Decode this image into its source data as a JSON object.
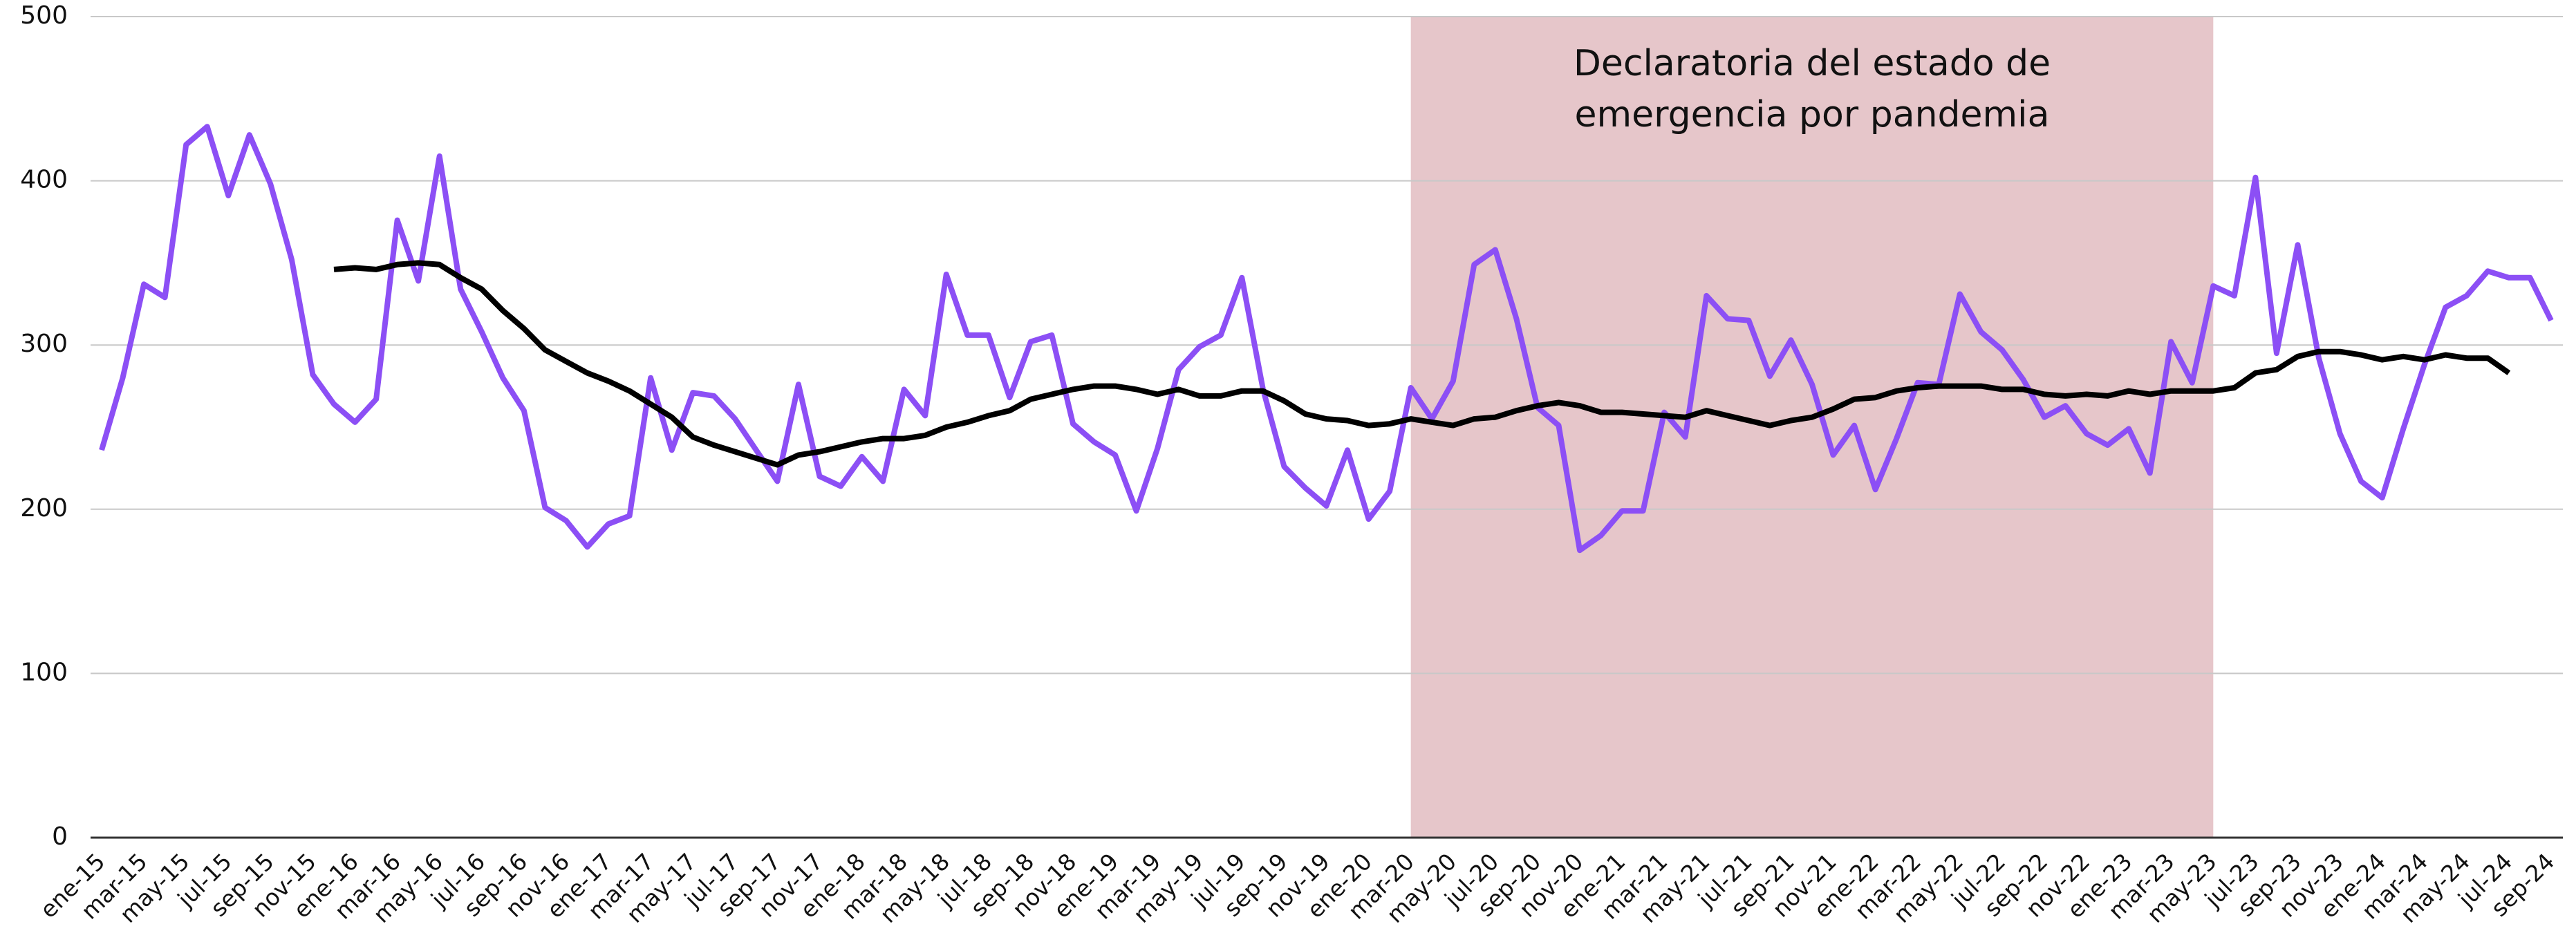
{
  "chart_data": {
    "type": "line",
    "categories": [
      "ene-15",
      null,
      "mar-15",
      null,
      "may-15",
      null,
      "jul-15",
      null,
      "sep-15",
      null,
      "nov-15",
      null,
      "ene-16",
      null,
      "mar-16",
      null,
      "may-16",
      null,
      "jul-16",
      null,
      "sep-16",
      null,
      "nov-16",
      null,
      "ene-17",
      null,
      "mar-17",
      null,
      "may-17",
      null,
      "jul-17",
      null,
      "sep-17",
      null,
      "nov-17",
      null,
      "ene-18",
      null,
      "mar-18",
      null,
      "may-18",
      null,
      "jul-18",
      null,
      "sep-18",
      null,
      "nov-18",
      null,
      "ene-19",
      null,
      "mar-19",
      null,
      "may-19",
      null,
      "jul-19",
      null,
      "sep-19",
      null,
      "nov-19",
      null,
      "ene-20",
      null,
      "mar-20",
      null,
      "may-20",
      null,
      "jul-20",
      null,
      "sep-20",
      null,
      "nov-20",
      null,
      "ene-21",
      null,
      "mar-21",
      null,
      "may-21",
      null,
      "jul-21",
      null,
      "sep-21",
      null,
      "nov-21",
      null,
      "ene-22",
      null,
      "mar-22",
      null,
      "may-22",
      null,
      "jul-22",
      null,
      "sep-22",
      null,
      "nov-22",
      null,
      "ene-23",
      null,
      "mar-23",
      null,
      "may-23",
      null,
      "jul-23",
      null,
      "sep-23",
      null,
      "nov-23",
      null,
      "ene-24",
      null,
      "mar-24",
      null,
      "may-24",
      null,
      "jul-24",
      null,
      "sep-24"
    ],
    "series": [
      {
        "color": "#8c4ff5",
        "values": [
          236,
          280,
          337,
          329,
          422,
          433,
          391,
          428,
          398,
          352,
          282,
          264,
          253,
          267,
          376,
          339,
          415,
          334,
          308,
          280,
          260,
          201,
          193,
          177,
          191,
          196,
          280,
          236,
          271,
          269,
          255,
          236,
          217,
          276,
          220,
          214,
          232,
          217,
          273,
          257,
          343,
          306,
          306,
          268,
          302,
          306,
          252,
          241,
          233,
          199,
          237,
          285,
          299,
          306,
          341,
          273,
          226,
          213,
          202,
          236,
          194,
          211,
          274,
          255,
          278,
          349,
          358,
          316,
          262,
          251,
          175,
          184,
          199,
          199,
          259,
          244,
          330,
          316,
          315,
          281,
          303,
          276,
          233,
          251,
          212,
          243,
          277,
          276,
          331,
          308,
          297,
          279,
          256,
          263,
          246,
          239,
          249,
          222,
          302,
          277,
          336,
          330,
          402,
          295,
          361,
          292,
          246,
          217,
          207,
          249,
          288,
          323,
          330,
          345,
          341,
          341,
          315
        ]
      },
      {
        "color": "#000000",
        "values": [
          null,
          null,
          null,
          null,
          null,
          null,
          null,
          null,
          null,
          null,
          null,
          346,
          347,
          346,
          349,
          350,
          349,
          341,
          334,
          321,
          310,
          297,
          290,
          283,
          278,
          272,
          264,
          256,
          244,
          239,
          235,
          231,
          227,
          233,
          235,
          238,
          241,
          243,
          243,
          245,
          250,
          253,
          257,
          260,
          267,
          270,
          273,
          275,
          275,
          273,
          270,
          273,
          269,
          269,
          272,
          272,
          266,
          258,
          255,
          254,
          251,
          252,
          255,
          253,
          251,
          255,
          256,
          260,
          263,
          265,
          263,
          259,
          259,
          258,
          257,
          256,
          260,
          257,
          254,
          251,
          254,
          256,
          261,
          267,
          268,
          272,
          274,
          275,
          275,
          275,
          273,
          273,
          270,
          269,
          270,
          269,
          272,
          270,
          272,
          272,
          272,
          274,
          283,
          285,
          293,
          296,
          296,
          294,
          291,
          293,
          291,
          294,
          292,
          292,
          283,
          null,
          null
        ]
      }
    ],
    "ylim": [
      0,
      500
    ],
    "yticks": [
      0,
      100,
      200,
      300,
      400,
      500
    ],
    "grid": true,
    "annotation": {
      "lines": [
        "Declaratoria del estado de",
        "emergencia por pandemia"
      ],
      "x_start": "mar-20",
      "x_end": "may-23",
      "color": "#e6c6ca"
    }
  }
}
